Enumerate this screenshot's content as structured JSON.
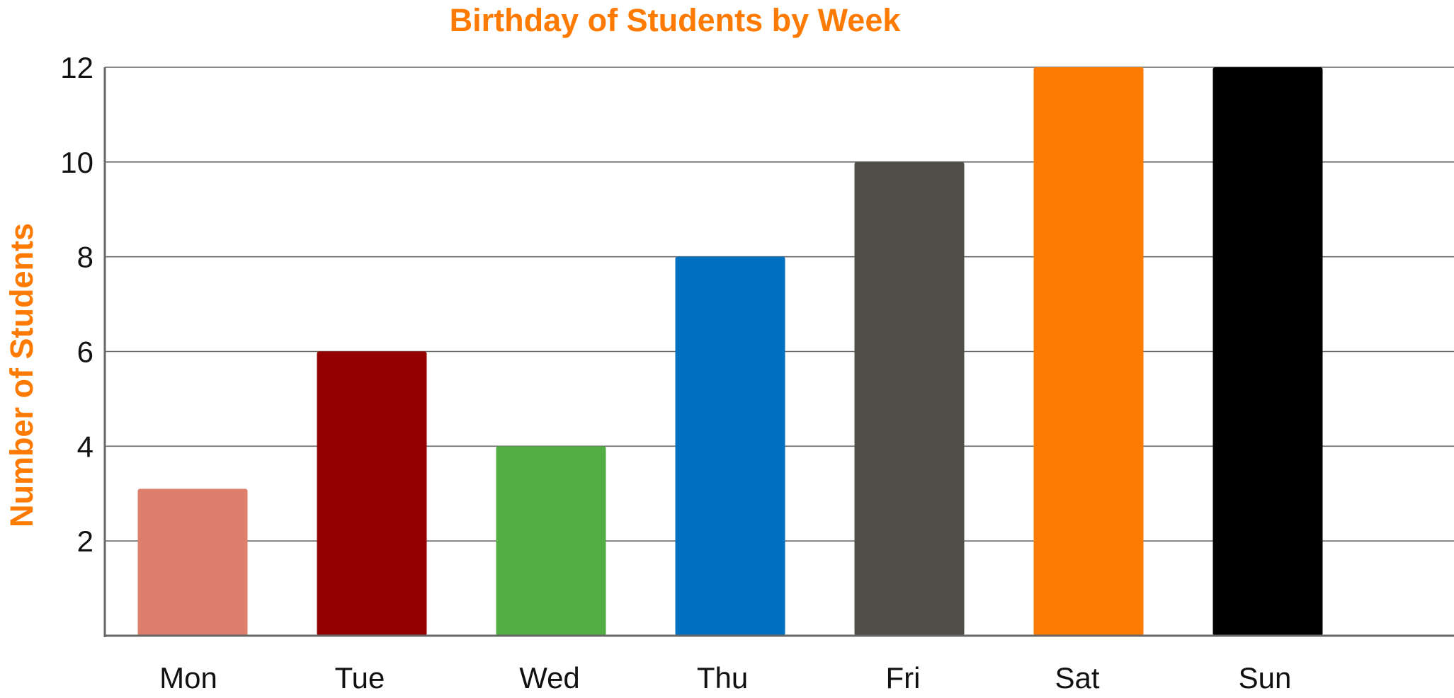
{
  "chart_data": {
    "type": "bar",
    "title": "Birthday of Students by Week",
    "xlabel": "",
    "ylabel": "Number of Students",
    "categories": [
      "Mon",
      "Tue",
      "Wed",
      "Thu",
      "Fri",
      "Sat",
      "Sun"
    ],
    "values": [
      3.1,
      6,
      4,
      8,
      10,
      12,
      12
    ],
    "bar_colors": [
      "#de7e6d",
      "#940000",
      "#52ad43",
      "#0071c1",
      "#4e4e46",
      "#ff7a00",
      "#000000"
    ],
    "yticks": [
      2,
      4,
      6,
      8,
      10,
      12
    ],
    "ylim": [
      0,
      12
    ],
    "grid": true,
    "legend": "none"
  },
  "colors": {
    "title": "#ff7a00",
    "ylabel": "#ff7a00",
    "grid": "#666666",
    "axis": "#666666"
  }
}
